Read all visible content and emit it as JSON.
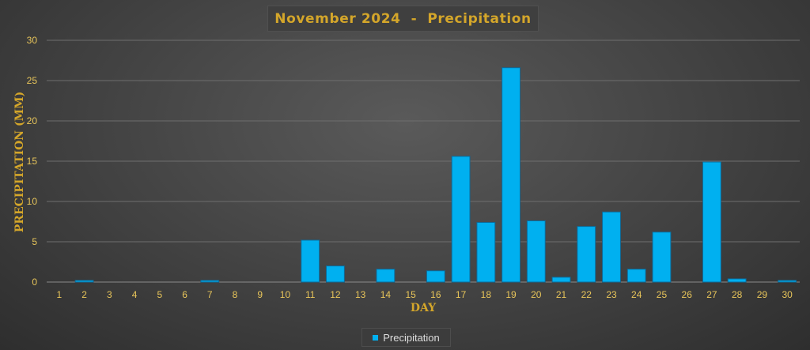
{
  "chart_data": {
    "type": "bar",
    "title": "November 2024  -  Precipitation",
    "xlabel": "DAY",
    "ylabel": "PRECIPITATION (MM)",
    "categories": [
      "1",
      "2",
      "3",
      "4",
      "5",
      "6",
      "7",
      "8",
      "9",
      "10",
      "11",
      "12",
      "13",
      "14",
      "15",
      "16",
      "17",
      "18",
      "19",
      "20",
      "21",
      "22",
      "23",
      "24",
      "25",
      "26",
      "27",
      "28",
      "29",
      "30"
    ],
    "series": [
      {
        "name": "Precipitation",
        "values": [
          0,
          0.2,
          0,
          0,
          0,
          0,
          0.2,
          0,
          0,
          0,
          5.2,
          2.0,
          0,
          1.6,
          0,
          1.4,
          15.6,
          7.4,
          26.6,
          7.6,
          0.6,
          6.9,
          8.7,
          1.6,
          6.2,
          0,
          14.9,
          0.4,
          0,
          0.2
        ],
        "color": "#00b0f0"
      }
    ],
    "ylim": [
      0,
      30
    ],
    "yticks": [
      0,
      5,
      10,
      15,
      20,
      25,
      30
    ],
    "grid": true,
    "legend_position": "bottom"
  }
}
